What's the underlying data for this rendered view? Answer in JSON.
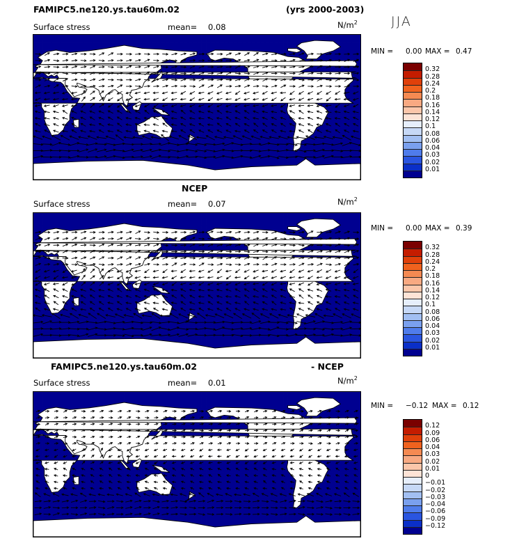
{
  "title": {
    "case": "FAMIPC5.ne120.ys.tau60m.02",
    "years": "(yrs 2000-2003)",
    "season": "JJA"
  },
  "panels": [
    {
      "id": "model",
      "header": "",
      "label": "Surface stress",
      "mean_label": "mean=",
      "mean": "0.08",
      "units": "N/m",
      "units_exp": "2",
      "min_label": "MIN =",
      "min": "0.00",
      "max_label": "MAX =",
      "max": "0.47"
    },
    {
      "id": "obs",
      "header": "NCEP",
      "label": "Surface stress",
      "mean_label": "mean=",
      "mean": "0.07",
      "units": "N/m",
      "units_exp": "2",
      "min_label": "MIN =",
      "min": "0.00",
      "max_label": "MAX =",
      "max": "0.39"
    },
    {
      "id": "diff",
      "header_left": "FAMIPC5.ne120.ys.tau60m.02",
      "header_right": "- NCEP",
      "label": "Surface stress",
      "mean_label": "mean=",
      "mean": "0.01",
      "units": "N/m",
      "units_exp": "2",
      "min_label": "MIN =",
      "min": "−0.12",
      "max_label": "MAX =",
      "max": "0.12"
    }
  ],
  "colorbars": {
    "abs": {
      "levels": [
        "0.32",
        "0.28",
        "0.24",
        "0.2",
        "0.18",
        "0.16",
        "0.14",
        "0.12",
        "0.1",
        "0.08",
        "0.06",
        "0.04",
        "0.03",
        "0.02",
        "0.01"
      ],
      "colors": [
        "#7a0000",
        "#c41c00",
        "#e0400a",
        "#f0621e",
        "#f58a52",
        "#f8a982",
        "#fbc6aa",
        "#fde3d6",
        "#e6eefb",
        "#c6d8f6",
        "#a2bff2",
        "#7aa0ee",
        "#4f7ceb",
        "#2a55e0",
        "#0a2fc8",
        "#000090"
      ]
    },
    "diff": {
      "levels": [
        "0.12",
        "0.09",
        "0.06",
        "0.04",
        "0.03",
        "0.02",
        "0.01",
        "0",
        "−0.01",
        "−0.02",
        "−0.03",
        "−0.04",
        "−0.06",
        "−0.09",
        "−0.12"
      ],
      "colors": [
        "#7a0000",
        "#c41c00",
        "#e0400a",
        "#f0621e",
        "#f58a52",
        "#f8a982",
        "#fbc6aa",
        "#fde3d6",
        "#e6eefb",
        "#c6d8f6",
        "#a2bff2",
        "#7aa0ee",
        "#4f7ceb",
        "#2a55e0",
        "#0a2fc8",
        "#000090"
      ]
    }
  },
  "chart_data": [
    {
      "type": "heatmap",
      "title": "Surface stress",
      "subtitle": "FAMIPC5.ne120.ys.tau60m.02 (yrs 2000-2003) JJA",
      "units": "N/m2",
      "mean": 0.08,
      "min": 0.0,
      "max": 0.47,
      "contour_levels": [
        0.01,
        0.02,
        0.03,
        0.04,
        0.06,
        0.08,
        0.1,
        0.12,
        0.14,
        0.16,
        0.18,
        0.2,
        0.24,
        0.28,
        0.32
      ],
      "overlay": "wind stress vectors",
      "domain": "global, lon 0-360, lat 90S-90N"
    },
    {
      "type": "heatmap",
      "title": "Surface stress",
      "subtitle": "NCEP",
      "units": "N/m2",
      "mean": 0.07,
      "min": 0.0,
      "max": 0.39,
      "contour_levels": [
        0.01,
        0.02,
        0.03,
        0.04,
        0.06,
        0.08,
        0.1,
        0.12,
        0.14,
        0.16,
        0.18,
        0.2,
        0.24,
        0.28,
        0.32
      ],
      "overlay": "wind stress vectors",
      "domain": "global, lon 0-360, lat 90S-90N"
    },
    {
      "type": "heatmap",
      "title": "Surface stress",
      "subtitle": "FAMIPC5.ne120.ys.tau60m.02 - NCEP",
      "units": "N/m2",
      "mean": 0.01,
      "min": -0.12,
      "max": 0.12,
      "contour_levels": [
        -0.12,
        -0.09,
        -0.06,
        -0.04,
        -0.03,
        -0.02,
        -0.01,
        0,
        0.01,
        0.02,
        0.03,
        0.04,
        0.06,
        0.09,
        0.12
      ],
      "overlay": "wind stress difference vectors",
      "domain": "global, lon 0-360, lat 90S-90N"
    }
  ]
}
